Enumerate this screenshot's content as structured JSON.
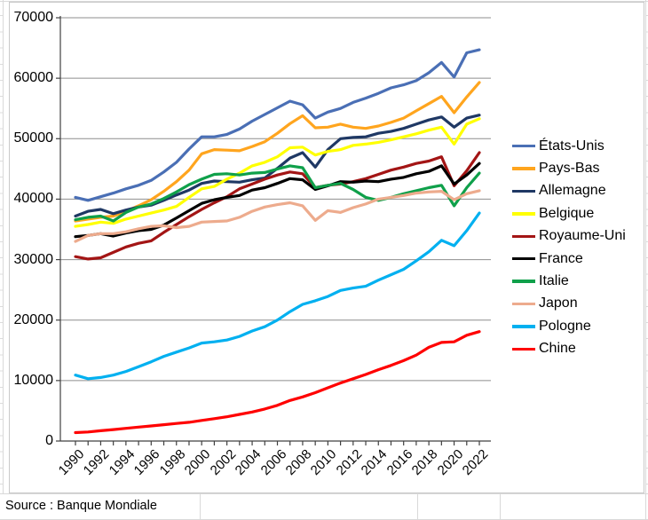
{
  "spreadsheet": {
    "source_note": "Source : Banque Mondiale"
  },
  "chart_data": {
    "type": "line",
    "x": [
      1990,
      1991,
      1992,
      1993,
      1994,
      1995,
      1996,
      1997,
      1998,
      1999,
      2000,
      2001,
      2002,
      2003,
      2004,
      2005,
      2006,
      2007,
      2008,
      2009,
      2010,
      2011,
      2012,
      2013,
      2014,
      2015,
      2016,
      2017,
      2018,
      2019,
      2020,
      2021,
      2022
    ],
    "x_tick_labels": [
      "1990",
      "1992",
      "1994",
      "1996",
      "1998",
      "2000",
      "2002",
      "2004",
      "2006",
      "2008",
      "2010",
      "2012",
      "2014",
      "2016",
      "2018",
      "2020",
      "2022"
    ],
    "ylim": [
      0,
      70000
    ],
    "y_ticks": [
      0,
      10000,
      20000,
      30000,
      40000,
      50000,
      60000,
      70000
    ],
    "grid": "horizontal-only",
    "legend_position": "right",
    "colors": {
      "grid": "#8e8e8e",
      "axis": "#404040"
    },
    "series": [
      {
        "name": "États-Unis",
        "color": "#4a6fb5",
        "values": [
          40300,
          39800,
          40400,
          41000,
          41700,
          42300,
          43100,
          44500,
          46100,
          48300,
          50300,
          50300,
          50700,
          51600,
          52900,
          54000,
          55100,
          56200,
          55600,
          53400,
          54400,
          55000,
          56000,
          56700,
          57500,
          58400,
          58900,
          59600,
          60900,
          62600,
          60200,
          64200,
          64700
        ]
      },
      {
        "name": "Pays-Bas",
        "color": "#ffa51e",
        "values": [
          36400,
          36700,
          37000,
          37200,
          38000,
          38900,
          39900,
          41300,
          42900,
          44800,
          47500,
          48200,
          48100,
          48000,
          48700,
          49500,
          50900,
          52500,
          53800,
          51800,
          51900,
          52400,
          51900,
          51700,
          52100,
          52700,
          53400,
          54600,
          55800,
          57000,
          54300,
          56900,
          59300
        ]
      },
      {
        "name": "Allemagne",
        "color": "#1f3864",
        "values": [
          37200,
          38000,
          38300,
          37600,
          38200,
          38700,
          39000,
          39800,
          40700,
          41500,
          42600,
          43000,
          42900,
          42800,
          43200,
          43500,
          45100,
          46800,
          47700,
          45300,
          48200,
          50000,
          50200,
          50300,
          50900,
          51200,
          51700,
          52400,
          53100,
          53600,
          51900,
          53400,
          53900
        ]
      },
      {
        "name": "Belgique",
        "color": "#ffff00",
        "values": [
          35500,
          35800,
          36200,
          36000,
          36700,
          37200,
          37700,
          38200,
          38800,
          40300,
          41700,
          42100,
          43300,
          44300,
          45500,
          46100,
          47000,
          48500,
          48600,
          47300,
          47900,
          48200,
          48900,
          49100,
          49400,
          49800,
          50300,
          50800,
          51400,
          51900,
          49100,
          52400,
          53300
        ]
      },
      {
        "name": "Royaume-Uni",
        "color": "#a31515",
        "values": [
          30500,
          30100,
          30300,
          31200,
          32100,
          32700,
          33100,
          34500,
          35800,
          37100,
          38300,
          39400,
          40400,
          41700,
          42500,
          43300,
          44000,
          44500,
          44200,
          41900,
          42300,
          42500,
          42900,
          43400,
          44100,
          44800,
          45300,
          45900,
          46300,
          47000,
          42200,
          44700,
          47700
        ]
      },
      {
        "name": "France",
        "color": "#000000",
        "values": [
          33800,
          34000,
          34300,
          33900,
          34400,
          34800,
          35000,
          35700,
          36900,
          38100,
          39300,
          39900,
          40300,
          40600,
          41500,
          41900,
          42600,
          43400,
          43200,
          41600,
          42200,
          42900,
          42800,
          43000,
          42900,
          43300,
          43600,
          44200,
          44600,
          45500,
          42500,
          44000,
          45900
        ]
      },
      {
        "name": "Italie",
        "color": "#0fa04a",
        "values": [
          36600,
          37000,
          37200,
          36400,
          37800,
          38700,
          39200,
          40100,
          41200,
          42400,
          43300,
          44100,
          44200,
          44000,
          44300,
          44400,
          45000,
          45500,
          45200,
          41900,
          42300,
          42600,
          41600,
          40300,
          39800,
          40300,
          40900,
          41400,
          41900,
          42300,
          38900,
          41900,
          44300
        ]
      },
      {
        "name": "Japon",
        "color": "#edab8d",
        "values": [
          33000,
          34000,
          34300,
          34300,
          34600,
          35100,
          35500,
          35600,
          35300,
          35500,
          36200,
          36300,
          36400,
          37000,
          38000,
          38700,
          39100,
          39400,
          38900,
          36500,
          38100,
          37800,
          38600,
          39200,
          40000,
          40300,
          40600,
          41000,
          41200,
          41300,
          39900,
          40900,
          41400
        ]
      },
      {
        "name": "Pologne",
        "color": "#00b0f0",
        "values": [
          10900,
          10300,
          10500,
          10900,
          11500,
          12300,
          13100,
          14000,
          14700,
          15400,
          16200,
          16400,
          16700,
          17300,
          18200,
          18900,
          20000,
          21400,
          22600,
          23200,
          23900,
          24900,
          25300,
          25600,
          26600,
          27500,
          28400,
          29800,
          31300,
          33200,
          32300,
          34800,
          37700
        ]
      },
      {
        "name": "Chine",
        "color": "#ff0000",
        "values": [
          1400,
          1500,
          1700,
          1900,
          2100,
          2300,
          2500,
          2700,
          2900,
          3100,
          3400,
          3700,
          4000,
          4400,
          4800,
          5300,
          5900,
          6700,
          7300,
          8000,
          8800,
          9600,
          10300,
          11000,
          11800,
          12500,
          13300,
          14200,
          15500,
          16300,
          16400,
          17500,
          18100
        ]
      }
    ]
  }
}
